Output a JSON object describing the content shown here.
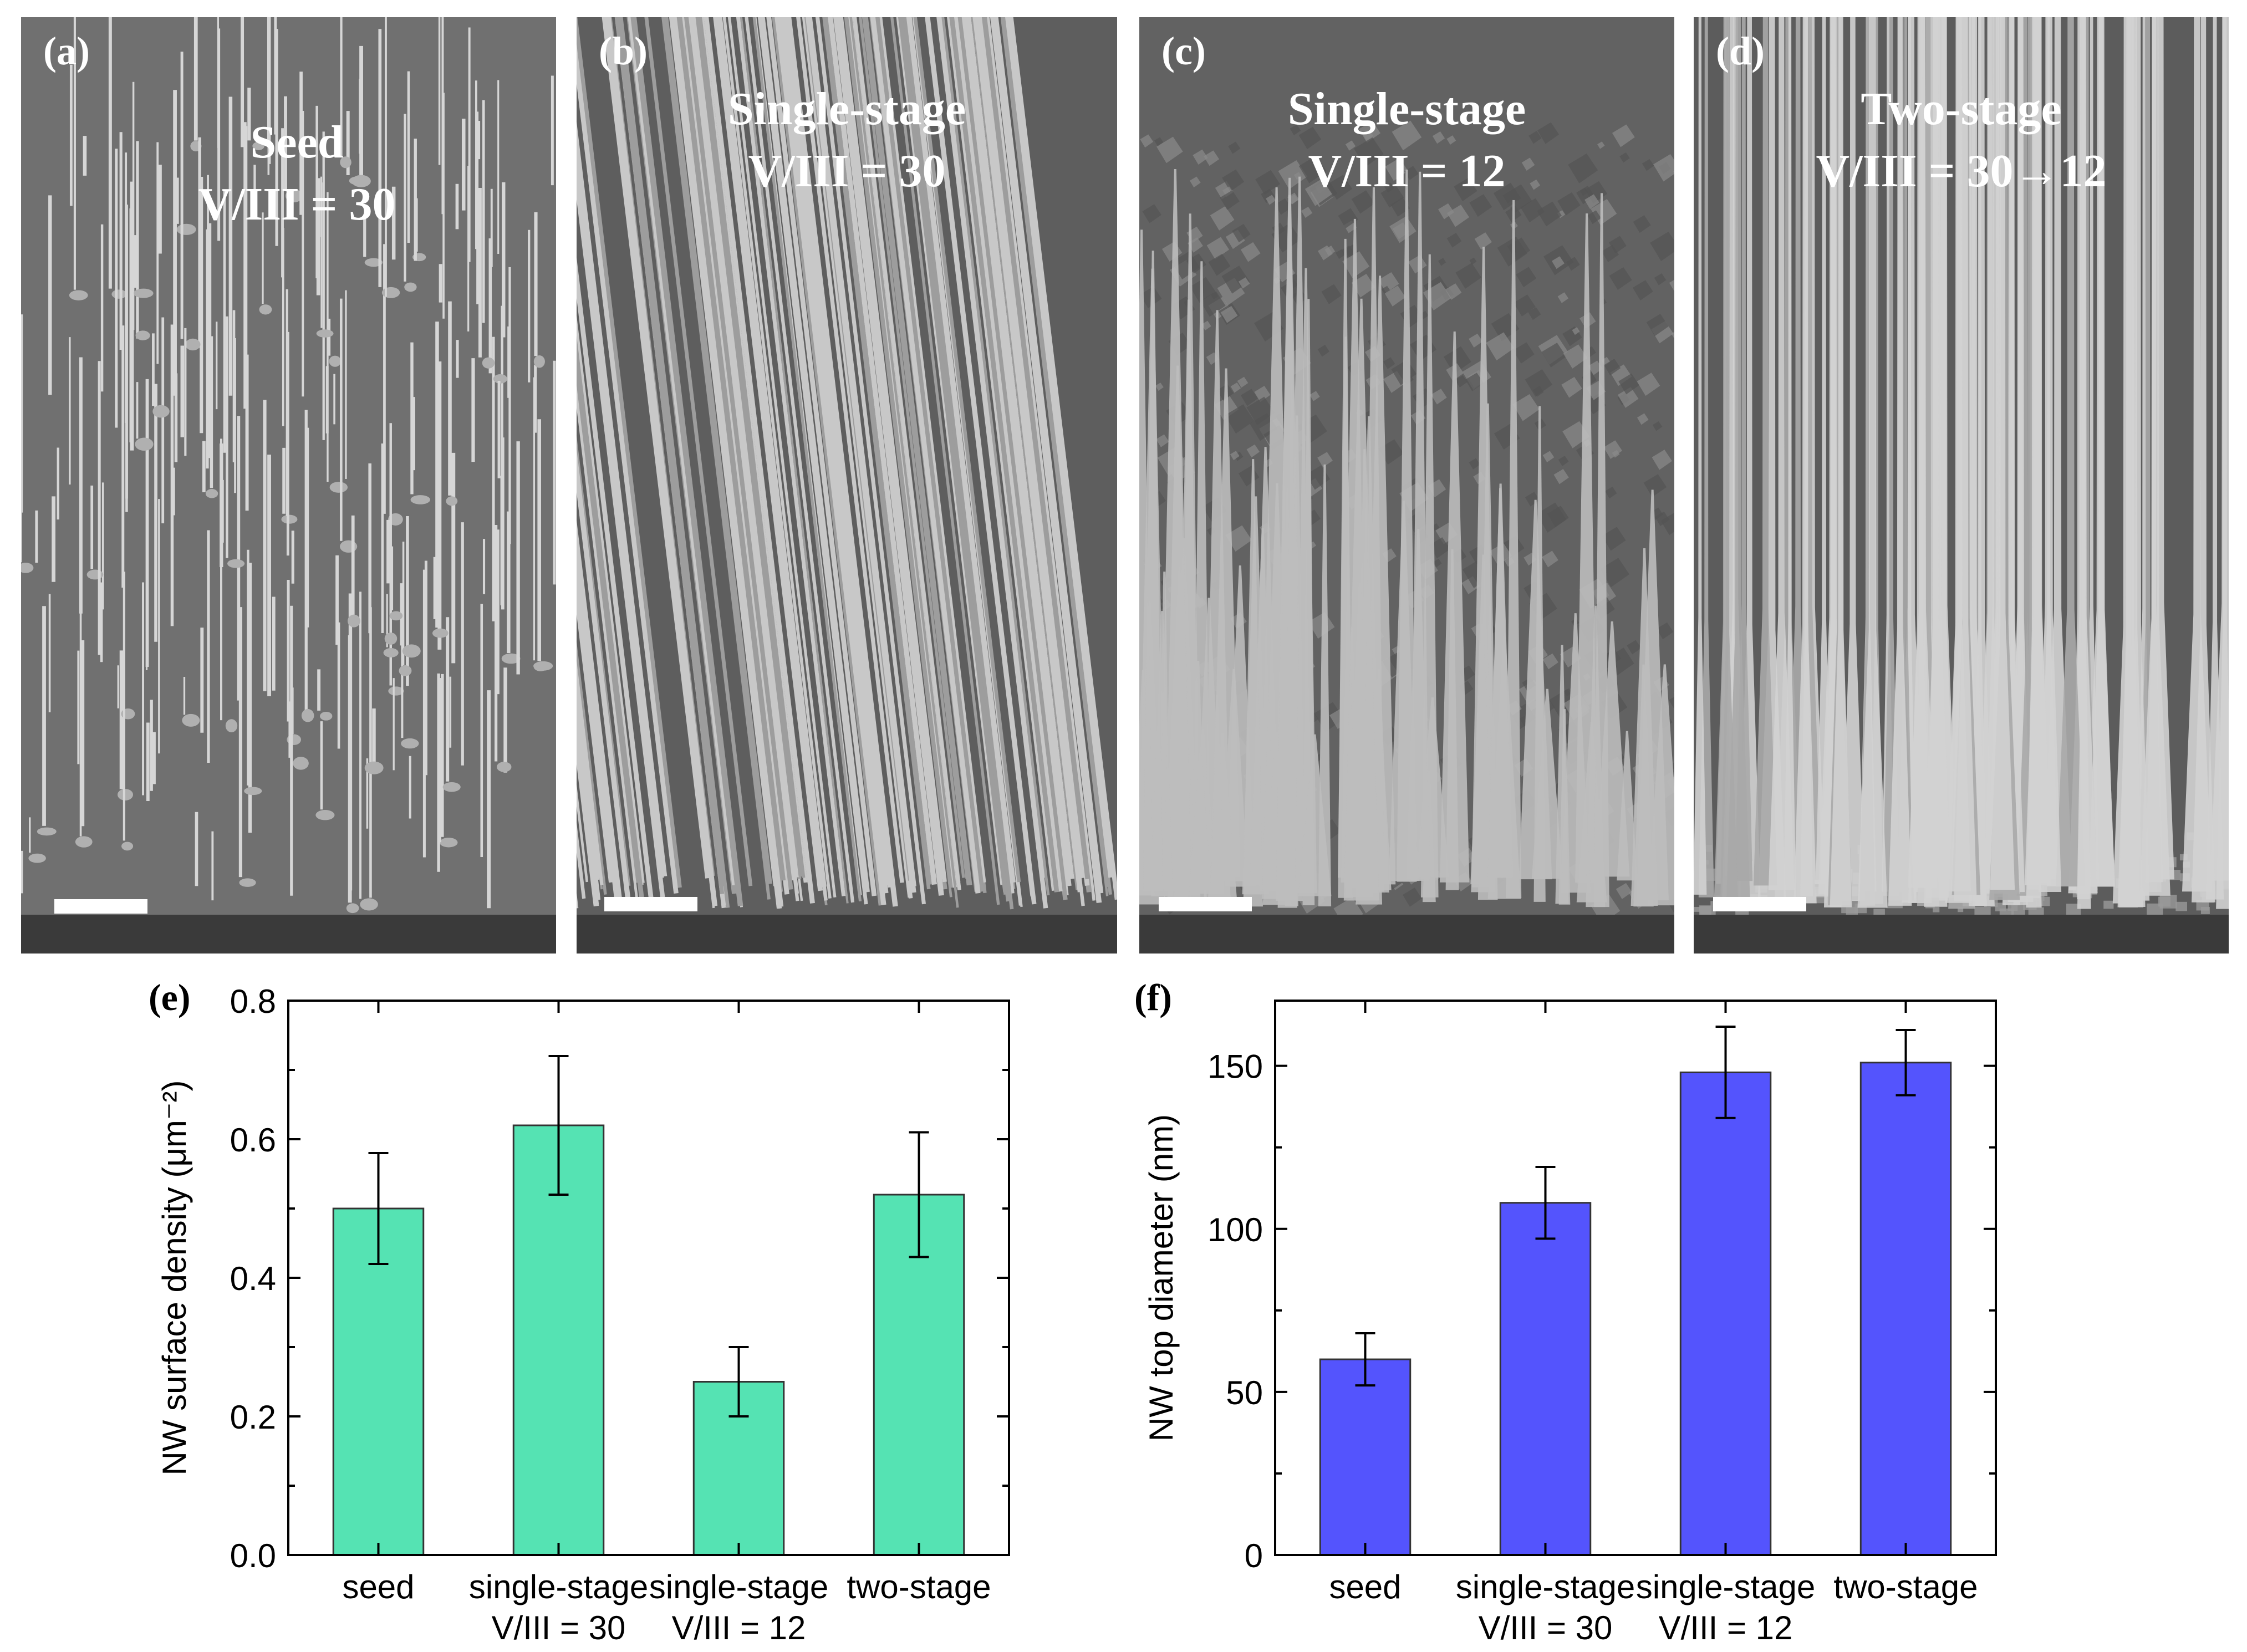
{
  "panels": [
    {
      "label": "(a)",
      "title_lines": [
        "Seed",
        "V/III = 30"
      ]
    },
    {
      "label": "(b)",
      "title_lines": [
        "Single-stage",
        "V/III = 30"
      ]
    },
    {
      "label": "(c)",
      "title_lines": [
        "Single-stage",
        "V/III = 12"
      ]
    },
    {
      "label": "(d)",
      "title_lines": [
        "Two-stage",
        "V/III = 30→12"
      ]
    }
  ],
  "chart_data": [
    {
      "panel_label": "(e)",
      "type": "bar",
      "categories": [
        [
          "seed"
        ],
        [
          "single-stage",
          "V/III = 30"
        ],
        [
          "single-stage",
          "V/III = 12"
        ],
        [
          "two-stage"
        ]
      ],
      "values": [
        0.5,
        0.62,
        0.25,
        0.52
      ],
      "errors": [
        0.08,
        0.1,
        0.05,
        0.09
      ],
      "ylabel": "NW surface density (μm⁻²)",
      "ylim": [
        0,
        0.8
      ],
      "yticks": [
        "0.0",
        "0.2",
        "0.4",
        "0.6",
        "0.8"
      ],
      "color": "#55e3b3"
    },
    {
      "panel_label": "(f)",
      "type": "bar",
      "categories": [
        [
          "seed"
        ],
        [
          "single-stage",
          "V/III = 30"
        ],
        [
          "single-stage",
          "V/III = 12"
        ],
        [
          "two-stage"
        ]
      ],
      "values": [
        60,
        108,
        148,
        151
      ],
      "errors": [
        8,
        11,
        14,
        10
      ],
      "ylabel": "NW top diameter (nm)",
      "ylim": [
        0,
        170
      ],
      "yticks": [
        "0",
        "50",
        "100",
        "150"
      ],
      "color": "#5454fd"
    }
  ]
}
